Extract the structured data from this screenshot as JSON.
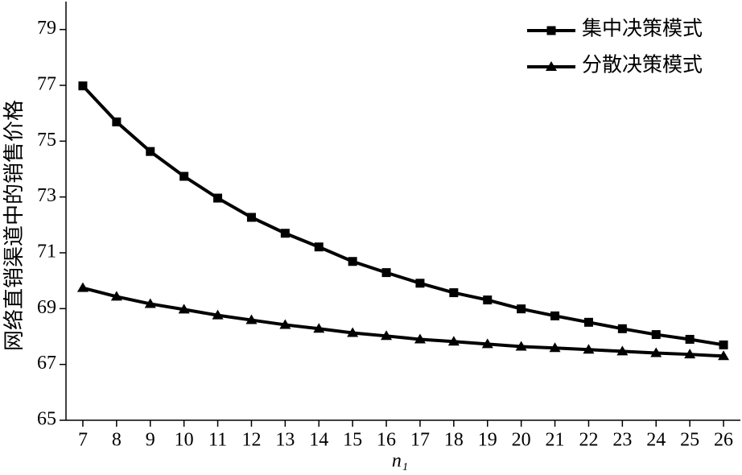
{
  "chart_data": {
    "type": "line",
    "xlabel": "n₁",
    "ylabel": "网络直销渠道中的销售价格",
    "x": [
      7,
      8,
      9,
      10,
      11,
      12,
      13,
      14,
      15,
      16,
      17,
      18,
      19,
      20,
      21,
      22,
      23,
      24,
      25,
      26
    ],
    "series": [
      {
        "name": "集中决策模式",
        "color": "#000000",
        "marker": "square",
        "values": [
          76.98,
          75.69,
          74.63,
          73.74,
          72.96,
          72.27,
          71.7,
          71.21,
          70.69,
          70.29,
          69.91,
          69.57,
          69.31,
          68.99,
          68.74,
          68.51,
          68.28,
          68.07,
          67.9,
          67.7
        ]
      },
      {
        "name": "分散决策模式",
        "color": "#000000",
        "marker": "triangle",
        "values": [
          69.74,
          69.43,
          69.17,
          68.97,
          68.76,
          68.59,
          68.42,
          68.28,
          68.13,
          68.02,
          67.9,
          67.82,
          67.73,
          67.64,
          67.59,
          67.53,
          67.47,
          67.41,
          67.36,
          67.3
        ]
      }
    ],
    "xlim": [
      6.5,
      26.5
    ],
    "xticks": [
      7,
      8,
      9,
      10,
      11,
      12,
      13,
      14,
      15,
      16,
      17,
      18,
      19,
      20,
      21,
      22,
      23,
      24,
      25,
      26
    ],
    "ylim": [
      65,
      80
    ],
    "yticks": [
      65,
      67,
      69,
      71,
      73,
      75,
      77,
      79
    ],
    "grid": false,
    "legend": "upper right"
  }
}
